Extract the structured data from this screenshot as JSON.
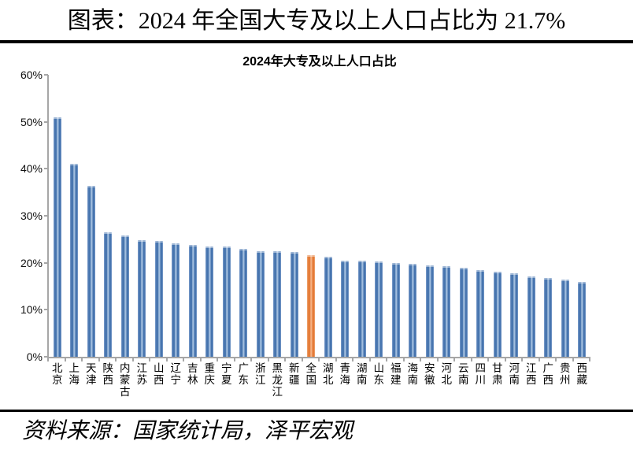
{
  "page": {
    "doc_title": "图表：2024 年全国大专及以上人口占比为 21.7%",
    "source_note": "资料来源：国家统计局，泽平宏观"
  },
  "chart_data": {
    "type": "bar",
    "title": "2024年大专及以上人口占比",
    "categories": [
      "北京",
      "上海",
      "天津",
      "陕西",
      "内蒙古",
      "江苏",
      "山西",
      "辽宁",
      "吉林",
      "重庆",
      "宁夏",
      "广东",
      "浙江",
      "黑龙江",
      "新疆",
      "全国",
      "湖北",
      "青海",
      "湖南",
      "山东",
      "福建",
      "海南",
      "安徽",
      "河北",
      "云南",
      "四川",
      "甘肃",
      "河南",
      "江西",
      "广西",
      "贵州",
      "西藏"
    ],
    "values": [
      51.0,
      41.0,
      36.3,
      26.4,
      25.8,
      24.8,
      24.6,
      24.1,
      23.8,
      23.5,
      23.4,
      22.9,
      22.4,
      22.4,
      22.3,
      21.7,
      21.3,
      20.4,
      20.4,
      20.3,
      19.9,
      19.8,
      19.5,
      19.2,
      19.0,
      18.5,
      18.1,
      17.8,
      17.1,
      16.7,
      16.4,
      16.0
    ],
    "highlight_category": "全国",
    "highlight_value": 21.7,
    "ylim": [
      0,
      60
    ],
    "ytick_labels": [
      "0%",
      "10%",
      "20%",
      "30%",
      "40%",
      "50%",
      "60%"
    ],
    "grid": false,
    "legend": "none",
    "xlabel": "",
    "ylabel": "",
    "colors": {
      "bar_dark": "#4674ae",
      "bar_light": "#a2bede",
      "bar_edge": "#7f9fcc",
      "highlight_dark": "#e47a36",
      "highlight_light": "#f5b285",
      "highlight_edge": "#f0a875",
      "axis": "#a6a6a6",
      "text": "#000000"
    }
  }
}
